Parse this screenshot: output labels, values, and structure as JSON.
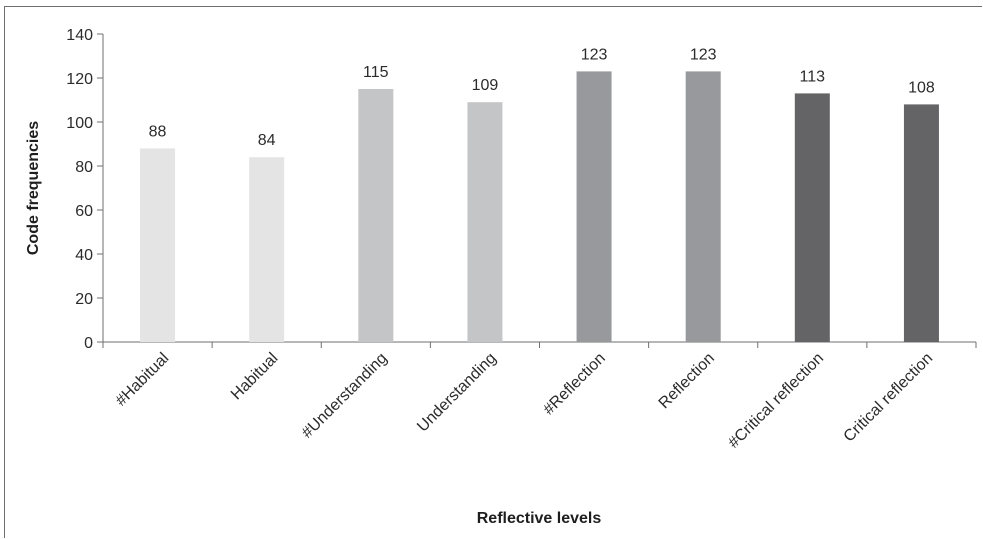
{
  "chart_data": {
    "type": "bar",
    "title": "",
    "xlabel": "Reflective levels",
    "ylabel": "Code frequencies",
    "ylim": [
      0,
      140
    ],
    "yticks": [
      0,
      20,
      40,
      60,
      80,
      100,
      120,
      140
    ],
    "grid": false,
    "legend": "none",
    "categories": [
      "#Habitual",
      "Habitual",
      "#Understanding",
      "Understanding",
      "#Reflection",
      "Reflection",
      "#Critical reflection",
      "Critical reflection"
    ],
    "values": [
      88,
      84,
      115,
      109,
      123,
      123,
      113,
      108
    ],
    "bar_colors": [
      "#e4e4e5",
      "#e4e4e5",
      "#c4c5c7",
      "#c4c5c7",
      "#98999c",
      "#98999c",
      "#646466",
      "#646466"
    ],
    "axis_color": "#6f6f6f"
  }
}
